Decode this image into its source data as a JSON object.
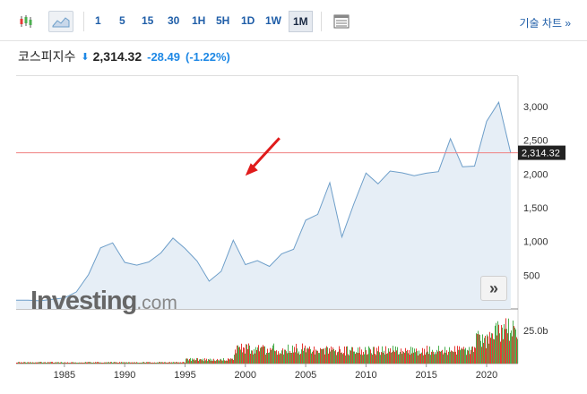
{
  "toolbar": {
    "icons": [
      "candlestick-icon",
      "area-chart-icon",
      "table-icon"
    ],
    "periods": [
      "1",
      "5",
      "15",
      "30",
      "1H",
      "5H",
      "1D",
      "1W",
      "1M"
    ],
    "active_period": "1M",
    "tech_chart_label": "기술 차트 »"
  },
  "quote": {
    "name": "코스피지수",
    "direction": "down",
    "price": "2,314.32",
    "change": "-28.49",
    "change_pct": "(-1.22%)"
  },
  "watermark": {
    "brand": "Investing",
    "domain": ".com"
  },
  "scroll_button_label": "»",
  "colors": {
    "line": "#6d9ec9",
    "fill": "#e6eef6",
    "current_line": "#f08080",
    "down": "#1e88e5",
    "vol_up": "#4caf50",
    "vol_down": "#e53935",
    "price_tag": "#222222"
  },
  "chart_data": {
    "type": "area",
    "title": "",
    "current_value_label": "2,314.32",
    "current_value": 2314.32,
    "y_ticks": [
      "500",
      "1,000",
      "1,500",
      "2,000",
      "2,500",
      "3,000"
    ],
    "x_ticks": [
      "1985",
      "1990",
      "1995",
      "2000",
      "2005",
      "2010",
      "2015",
      "2020"
    ],
    "x": [
      "1981",
      "1982",
      "1983",
      "1984",
      "1985",
      "1986",
      "1987",
      "1988",
      "1989",
      "1990",
      "1991",
      "1992",
      "1993",
      "1994",
      "1995",
      "1996",
      "1997",
      "1998",
      "1999",
      "2000",
      "2001",
      "2002",
      "2003",
      "2004",
      "2005",
      "2006",
      "2007",
      "2008",
      "2009",
      "2010",
      "2011",
      "2012",
      "2013",
      "2014",
      "2015",
      "2016",
      "2017",
      "2018",
      "2019",
      "2020",
      "2021",
      "2022"
    ],
    "series": [
      {
        "values": [
          130,
          125,
          120,
          140,
          160,
          250,
          500,
          900,
          1000,
          700,
          650,
          700,
          850,
          1050,
          900,
          700,
          400,
          550,
          1000,
          650,
          700,
          620,
          800,
          900,
          1350,
          1430,
          1900,
          1100,
          1600,
          2050,
          1800,
          2000,
          2000,
          1950,
          2000,
          2000,
          2450,
          2050,
          2150,
          2800,
          3100,
          2314
        ]
      }
    ],
    "volume_tick": "25.0b",
    "annotations": [
      "red arrow pointing at 2000"
    ]
  }
}
